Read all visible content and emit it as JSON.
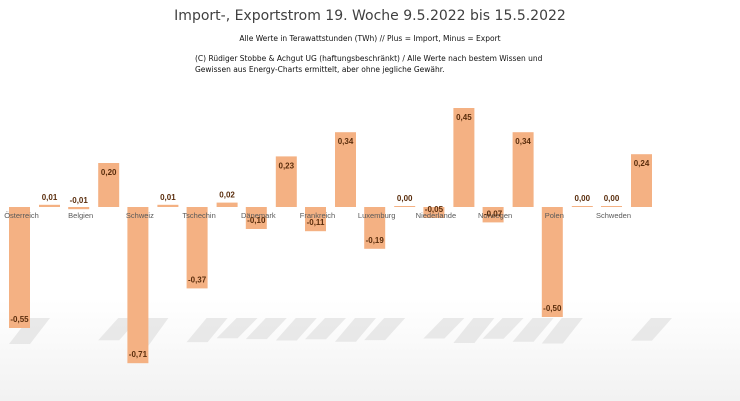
{
  "chart_data": {
    "type": "bar",
    "title": "Import-, Exportstrom 19. Woche 9.5.2022 bis 15.5.2022",
    "subtitle": "Alle Werte in Terawattstunden (TWh) // Plus = Import, Minus = Export",
    "note": "(C) Rüdiger Stobbe & Achgut UG (haftungsbeschränkt) / Alle Werte nach bestem Wissen und Gewissen aus Energy-Charts ermittelt, aber ohne jegliche Gewähr.",
    "xlabel": "",
    "ylabel": "",
    "grid": false,
    "legend": "none",
    "colors": {
      "bar": "#F4B183",
      "label": "#5a2d0c",
      "category": "#595959"
    },
    "categories": [
      "Österreich",
      "Belgien",
      "Schweiz",
      "Tschechin",
      "Dänemark",
      "Frankreich",
      "Luxemburg",
      "Niederlande",
      "Norwegen",
      "Polen",
      "Schweden"
    ],
    "series": [
      {
        "role": "export",
        "values": [
          -0.55,
          -0.01,
          -0.71,
          -0.37,
          -0.1,
          -0.11,
          -0.19,
          -0.05,
          -0.07,
          -0.5,
          0.0
        ]
      },
      {
        "role": "import",
        "values": [
          0.01,
          0.2,
          0.01,
          0.02,
          0.23,
          0.34,
          0.0,
          0.45,
          0.34,
          0.0,
          0.24
        ]
      }
    ],
    "value_labels": {
      "export": [
        "-0,55",
        "-0,01",
        "-0,71",
        "-0,37",
        "-0,10",
        "-0,11",
        "-0,19",
        "-0,05",
        "-0,07",
        "-0,50",
        "0,00"
      ],
      "import": [
        "0,01",
        "0,20",
        "0,01",
        "0,02",
        "0,23",
        "0,34",
        "0,00",
        "0,45",
        "0,34",
        "0,00",
        "0,24"
      ]
    }
  }
}
